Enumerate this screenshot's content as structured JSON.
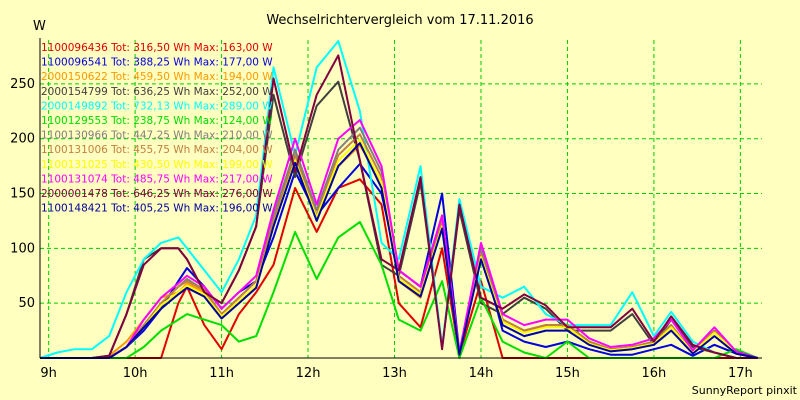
{
  "chart_data": {
    "type": "line",
    "title": "Wechselrichtervergleich vom 17.11.2016",
    "ylabel": "W",
    "footer": "SunnyReport pinxit",
    "ylim": [
      0,
      290
    ],
    "xlim": [
      8.9,
      17.25
    ],
    "grid": true,
    "legend_position": "top-left",
    "x_ticks": [
      {
        "x": 9,
        "label": "9h"
      },
      {
        "x": 10,
        "label": "10h"
      },
      {
        "x": 11,
        "label": "11h"
      },
      {
        "x": 12,
        "label": "12h"
      },
      {
        "x": 13,
        "label": "13h"
      },
      {
        "x": 14,
        "label": "14h"
      },
      {
        "x": 15,
        "label": "15h"
      },
      {
        "x": 16,
        "label": "16h"
      },
      {
        "x": 17,
        "label": "17h"
      }
    ],
    "y_ticks": [
      {
        "y": 50,
        "label": "50"
      },
      {
        "y": 100,
        "label": "100"
      },
      {
        "y": 150,
        "label": "150"
      },
      {
        "y": 200,
        "label": "200"
      },
      {
        "y": 250,
        "label": "250"
      }
    ],
    "x": [
      8.9,
      9.1,
      9.3,
      9.5,
      9.7,
      9.9,
      10.1,
      10.3,
      10.5,
      10.6,
      10.8,
      11.0,
      11.2,
      11.4,
      11.6,
      11.85,
      12.1,
      12.35,
      12.6,
      12.85,
      13.05,
      13.3,
      13.55,
      13.75,
      14.0,
      14.25,
      14.5,
      14.75,
      15.0,
      15.25,
      15.5,
      15.75,
      16.0,
      16.2,
      16.45,
      16.7,
      16.95,
      17.2
    ],
    "series": [
      {
        "label": "1100096436 Tot: 316,50 Wh Max: 163,00 W",
        "color": "#e00000",
        "values": [
          0,
          0,
          0,
          0,
          0,
          0,
          0,
          0,
          50,
          65,
          30,
          8,
          40,
          60,
          85,
          155,
          115,
          155,
          163,
          140,
          50,
          28,
          100,
          3,
          70,
          0,
          0,
          0,
          0,
          0,
          0,
          0,
          0,
          0,
          0,
          0,
          0,
          0
        ]
      },
      {
        "label": "1100096541 Tot: 388,25 Wh Max: 177,00 W",
        "color": "#0000e0",
        "values": [
          0,
          0,
          0,
          0,
          0,
          10,
          25,
          45,
          70,
          82,
          65,
          45,
          60,
          70,
          110,
          170,
          130,
          155,
          177,
          150,
          80,
          65,
          150,
          5,
          100,
          25,
          15,
          10,
          15,
          8,
          3,
          3,
          8,
          12,
          2,
          12,
          4,
          0
        ]
      },
      {
        "label": "2000150622 Tot: 459,50 Wh Max: 194,00 W",
        "color": "#ff9900",
        "values": [
          0,
          0,
          0,
          0,
          2,
          15,
          35,
          55,
          60,
          68,
          60,
          40,
          55,
          70,
          130,
          185,
          135,
          175,
          194,
          160,
          70,
          55,
          120,
          3,
          95,
          35,
          25,
          30,
          30,
          15,
          8,
          10,
          15,
          30,
          5,
          25,
          5,
          0
        ]
      },
      {
        "label": "2000154799 Tot: 636,25 Wh Max: 252,00 W",
        "color": "#404040",
        "values": [
          0,
          0,
          0,
          0,
          2,
          40,
          90,
          100,
          100,
          90,
          60,
          50,
          80,
          120,
          240,
          165,
          230,
          252,
          180,
          85,
          75,
          160,
          10,
          135,
          50,
          40,
          55,
          45,
          25,
          25,
          25,
          40,
          12,
          35,
          10,
          5,
          0,
          0
        ]
      },
      {
        "label": "2000149892 Tot: 732,13 Wh Max: 289,00 W",
        "color": "#00ffff",
        "values": [
          0,
          5,
          8,
          8,
          20,
          60,
          90,
          105,
          110,
          100,
          80,
          60,
          90,
          130,
          265,
          185,
          265,
          289,
          225,
          105,
          90,
          175,
          10,
          145,
          65,
          55,
          65,
          40,
          30,
          30,
          30,
          60,
          20,
          42,
          15,
          5,
          0,
          0
        ]
      },
      {
        "label": "1100129553 Tot: 238,75 Wh Max: 124,00 W",
        "color": "#00dd00",
        "values": [
          0,
          0,
          0,
          0,
          0,
          0,
          10,
          25,
          35,
          40,
          35,
          30,
          15,
          20,
          60,
          115,
          72,
          110,
          124,
          85,
          35,
          25,
          70,
          0,
          55,
          15,
          5,
          0,
          15,
          0,
          0,
          0,
          0,
          0,
          0,
          0,
          8,
          0
        ]
      },
      {
        "label": "1100130966 Tot: 447,25 Wh Max: 210,00 W",
        "color": "#808080",
        "values": [
          0,
          0,
          0,
          0,
          0,
          10,
          30,
          50,
          65,
          72,
          62,
          40,
          55,
          70,
          130,
          190,
          135,
          190,
          210,
          170,
          80,
          65,
          130,
          3,
          100,
          35,
          25,
          30,
          30,
          15,
          8,
          10,
          15,
          30,
          5,
          25,
          5,
          0
        ]
      },
      {
        "label": "1100131006 Tot: 455,75 Wh Max: 204,00 W",
        "color": "#c08040",
        "values": [
          0,
          0,
          0,
          0,
          0,
          10,
          30,
          50,
          65,
          70,
          62,
          40,
          55,
          70,
          125,
          185,
          130,
          185,
          204,
          165,
          75,
          60,
          125,
          3,
          95,
          35,
          25,
          30,
          30,
          15,
          8,
          10,
          15,
          30,
          5,
          25,
          5,
          0
        ]
      },
      {
        "label": "1100131025 Tot: 430,50 Wh Max: 199,00 W",
        "color": "#ffff00",
        "values": [
          0,
          0,
          0,
          0,
          0,
          10,
          28,
          48,
          60,
          66,
          58,
          38,
          52,
          66,
          120,
          180,
          128,
          180,
          199,
          160,
          72,
          58,
          120,
          3,
          92,
          33,
          23,
          28,
          28,
          13,
          7,
          9,
          13,
          28,
          5,
          23,
          5,
          0
        ]
      },
      {
        "label": "1100131074 Tot: 485,75 Wh Max: 217,00 W",
        "color": "#ff00ff",
        "values": [
          0,
          0,
          0,
          0,
          0,
          10,
          35,
          55,
          68,
          75,
          65,
          45,
          60,
          75,
          135,
          200,
          140,
          200,
          217,
          175,
          80,
          65,
          130,
          5,
          105,
          40,
          30,
          35,
          35,
          18,
          10,
          12,
          18,
          35,
          7,
          28,
          6,
          0
        ]
      },
      {
        "label": "2000001478 Tot: 646,25 Wh Max: 276,00 W",
        "color": "#800040",
        "values": [
          0,
          0,
          0,
          0,
          2,
          40,
          85,
          100,
          100,
          90,
          60,
          50,
          80,
          120,
          255,
          170,
          240,
          276,
          180,
          90,
          80,
          165,
          8,
          140,
          55,
          45,
          58,
          48,
          28,
          28,
          28,
          45,
          15,
          38,
          12,
          5,
          0,
          0
        ]
      },
      {
        "label": "1100148421 Tot: 405,25 Wh Max: 196,00 W",
        "color": "#0000a0",
        "values": [
          0,
          0,
          0,
          0,
          0,
          10,
          28,
          45,
          58,
          64,
          56,
          36,
          50,
          64,
          120,
          178,
          125,
          175,
          196,
          155,
          70,
          56,
          118,
          3,
          90,
          30,
          20,
          25,
          25,
          12,
          6,
          8,
          12,
          25,
          4,
          20,
          4,
          0
        ]
      }
    ]
  }
}
